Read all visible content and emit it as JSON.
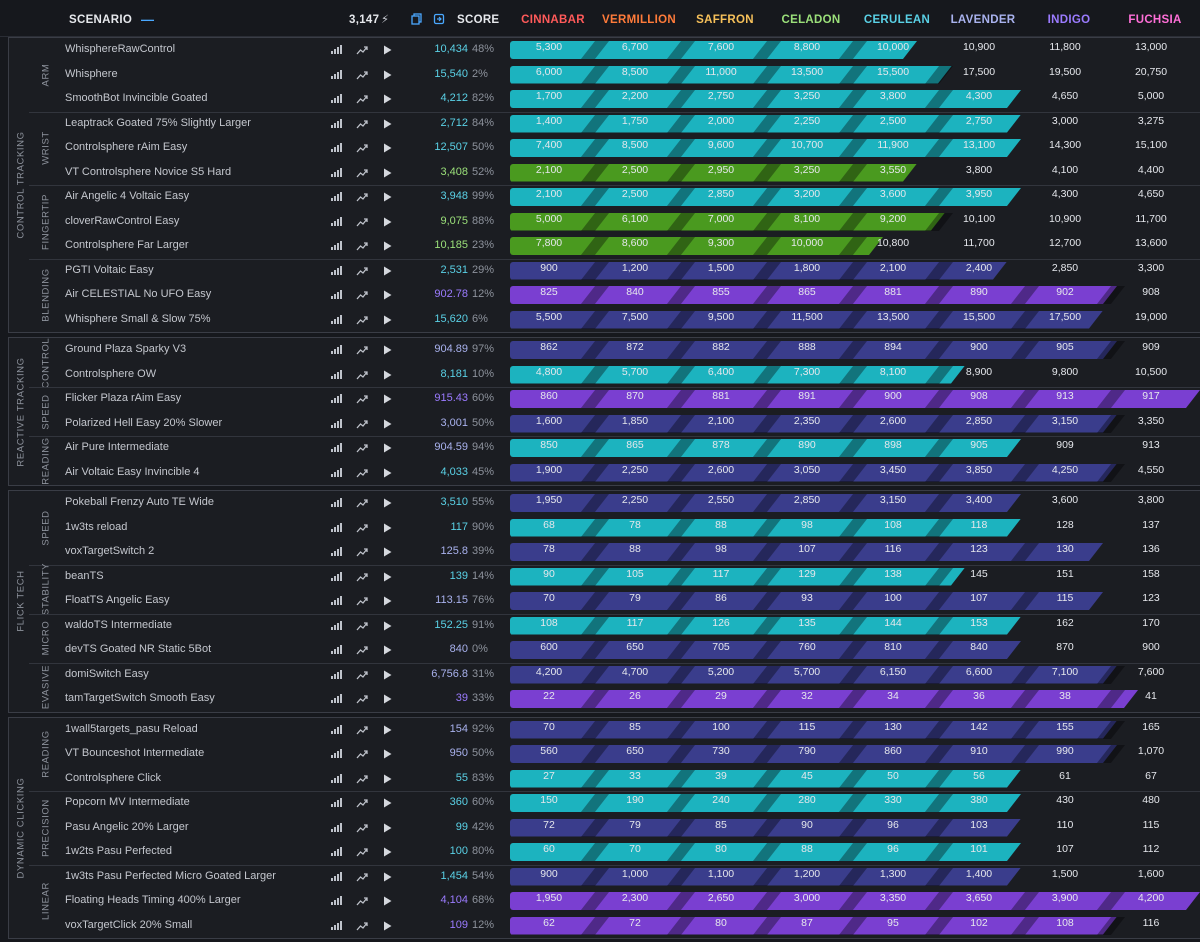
{
  "header": {
    "scenario_label": "SCENARIO",
    "collapse_symbol": "—",
    "total_points": "3,147",
    "bolt_icon": "⚡",
    "score_label": "SCORE",
    "ranks": [
      {
        "name": "CINNABAR",
        "color": "#ff5a5a"
      },
      {
        "name": "VERMILLION",
        "color": "#ff7b3a"
      },
      {
        "name": "SAFFRON",
        "color": "#f7c15a"
      },
      {
        "name": "CELADON",
        "color": "#9be07a"
      },
      {
        "name": "CERULEAN",
        "color": "#5ad1e6"
      },
      {
        "name": "LAVENDER",
        "color": "#a9b2ee"
      },
      {
        "name": "INDIGO",
        "color": "#9b7bff"
      },
      {
        "name": "FUCHSIA",
        "color": "#ff6fd8"
      }
    ]
  },
  "colors": {
    "teal": "#1cb3bf",
    "green": "#4a9a1f",
    "purple": "#7a3fd1",
    "navy": "#3a3d8c"
  },
  "categories": [
    {
      "label": "CONTROL TRACKING",
      "subs": [
        {
          "label": "ARM",
          "rows": [
            {
              "name": "WhisphereRawControl",
              "score": "10,434",
              "pct": "48%",
              "sc": "#5ad1e6",
              "fill": 0.59,
              "color": "teal",
              "values": [
                "5,300",
                "6,700",
                "7,600",
                "8,800",
                "10,000",
                "10,900",
                "11,800",
                "13,000"
              ]
            },
            {
              "name": "Whisphere",
              "score": "15,540",
              "pct": "2%",
              "sc": "#5ad1e6",
              "fill": 0.64,
              "color": "teal",
              "values": [
                "6,000",
                "8,500",
                "11,000",
                "13,500",
                "15,500",
                "17,500",
                "19,500",
                "20,750"
              ]
            },
            {
              "name": "SmoothBot Invincible Goated",
              "score": "4,212",
              "pct": "82%",
              "sc": "#5ad1e6",
              "fill": 0.74,
              "color": "teal",
              "values": [
                "1,700",
                "2,200",
                "2,750",
                "3,250",
                "3,800",
                "4,300",
                "4,650",
                "5,000"
              ]
            }
          ]
        },
        {
          "label": "WRIST",
          "rows": [
            {
              "name": "Leaptrack Goated 75% Slightly Larger",
              "score": "2,712",
              "pct": "84%",
              "sc": "#5ad1e6",
              "fill": 0.74,
              "color": "teal",
              "values": [
                "1,400",
                "1,750",
                "2,000",
                "2,250",
                "2,500",
                "2,750",
                "3,000",
                "3,275"
              ]
            },
            {
              "name": "Controlsphere rAim Easy",
              "score": "12,507",
              "pct": "50%",
              "sc": "#5ad1e6",
              "fill": 0.74,
              "color": "teal",
              "values": [
                "7,400",
                "8,500",
                "9,600",
                "10,700",
                "11,900",
                "13,100",
                "14,300",
                "15,100"
              ]
            },
            {
              "name": "VT Controlsphere Novice S5 Hard",
              "score": "3,408",
              "pct": "52%",
              "sc": "#9be07a",
              "fill": 0.59,
              "color": "green",
              "values": [
                "2,100",
                "2,500",
                "2,950",
                "3,250",
                "3,550",
                "3,800",
                "4,100",
                "4,400"
              ]
            }
          ]
        },
        {
          "label": "FINGERTIP",
          "rows": [
            {
              "name": "Air Angelic 4 Voltaic Easy",
              "score": "3,948",
              "pct": "99%",
              "sc": "#5ad1e6",
              "fill": 0.74,
              "color": "teal",
              "values": [
                "2,100",
                "2,500",
                "2,850",
                "3,200",
                "3,600",
                "3,950",
                "4,300",
                "4,650"
              ]
            },
            {
              "name": "cloverRawControl Easy",
              "score": "9,075",
              "pct": "88%",
              "sc": "#9be07a",
              "fill": 0.63,
              "color": "green",
              "values": [
                "5,000",
                "6,100",
                "7,000",
                "8,100",
                "9,200",
                "10,100",
                "10,900",
                "11,700"
              ]
            },
            {
              "name": "Controlsphere Far Larger",
              "score": "10,185",
              "pct": "23%",
              "sc": "#9be07a",
              "fill": 0.54,
              "color": "green",
              "values": [
                "7,800",
                "8,600",
                "9,300",
                "10,000",
                "10,800",
                "11,700",
                "12,700",
                "13,600"
              ]
            }
          ]
        },
        {
          "label": "BLENDING",
          "rows": [
            {
              "name": "PGTI Voltaic Easy",
              "score": "2,531",
              "pct": "29%",
              "sc": "#5ad1e6",
              "fill": 0.72,
              "color": "navy",
              "values": [
                "900",
                "1,200",
                "1,500",
                "1,800",
                "2,100",
                "2,400",
                "2,850",
                "3,300"
              ]
            },
            {
              "name": "Air CELESTIAL No UFO Easy",
              "score": "902.78",
              "pct": "12%",
              "sc": "#9b7bff",
              "fill": 0.88,
              "color": "purple",
              "values": [
                "825",
                "840",
                "855",
                "865",
                "881",
                "890",
                "902",
                "908"
              ]
            },
            {
              "name": "Whisphere Small & Slow 75%",
              "score": "15,620",
              "pct": "6%",
              "sc": "#5ad1e6",
              "fill": 0.86,
              "color": "navy",
              "values": [
                "5,500",
                "7,500",
                "9,500",
                "11,500",
                "13,500",
                "15,500",
                "17,500",
                "19,000"
              ]
            }
          ]
        }
      ]
    },
    {
      "label": "REACTIVE TRACKING",
      "subs": [
        {
          "label": "CONTROL",
          "rows": [
            {
              "name": "Ground Plaza Sparky V3",
              "score": "904.89",
              "pct": "97%",
              "sc": "#a9b2ee",
              "fill": 0.88,
              "color": "navy",
              "values": [
                "862",
                "872",
                "882",
                "888",
                "894",
                "900",
                "905",
                "909"
              ]
            },
            {
              "name": "Controlsphere OW",
              "score": "8,181",
              "pct": "10%",
              "sc": "#5ad1e6",
              "fill": 0.66,
              "color": "teal",
              "values": [
                "4,800",
                "5,700",
                "6,400",
                "7,300",
                "8,100",
                "8,900",
                "9,800",
                "10,500"
              ]
            }
          ]
        },
        {
          "label": "SPEED",
          "rows": [
            {
              "name": "Flicker Plaza rAim Easy",
              "score": "915.43",
              "pct": "60%",
              "sc": "#9b7bff",
              "fill": 1.0,
              "color": "purple",
              "values": [
                "860",
                "870",
                "881",
                "891",
                "900",
                "908",
                "913",
                "917"
              ]
            },
            {
              "name": "Polarized Hell Easy 20% Slower",
              "score": "3,001",
              "pct": "50%",
              "sc": "#a9b2ee",
              "fill": 0.88,
              "color": "navy",
              "values": [
                "1,600",
                "1,850",
                "2,100",
                "2,350",
                "2,600",
                "2,850",
                "3,150",
                "3,350"
              ]
            }
          ]
        },
        {
          "label": "READING",
          "rows": [
            {
              "name": "Air Pure Intermediate",
              "score": "904.59",
              "pct": "94%",
              "sc": "#a9b2ee",
              "fill": 0.74,
              "color": "teal",
              "values": [
                "850",
                "865",
                "878",
                "890",
                "898",
                "905",
                "909",
                "913"
              ]
            },
            {
              "name": "Air Voltaic Easy Invincible 4",
              "score": "4,033",
              "pct": "45%",
              "sc": "#5ad1e6",
              "fill": 0.88,
              "color": "navy",
              "values": [
                "1,900",
                "2,250",
                "2,600",
                "3,050",
                "3,450",
                "3,850",
                "4,250",
                "4,550"
              ]
            }
          ]
        }
      ]
    },
    {
      "label": "FLICK TECH",
      "subs": [
        {
          "label": "SPEED",
          "rows": [
            {
              "name": "Pokeball Frenzy Auto TE Wide",
              "score": "3,510",
              "pct": "55%",
              "sc": "#5ad1e6",
              "fill": 0.74,
              "color": "navy",
              "values": [
                "1,950",
                "2,250",
                "2,550",
                "2,850",
                "3,150",
                "3,400",
                "3,600",
                "3,800"
              ]
            },
            {
              "name": "1w3ts reload",
              "score": "117",
              "pct": "90%",
              "sc": "#5ad1e6",
              "fill": 0.74,
              "color": "teal",
              "values": [
                "68",
                "78",
                "88",
                "98",
                "108",
                "118",
                "128",
                "137"
              ]
            },
            {
              "name": "voxTargetSwitch 2",
              "score": "125.8",
              "pct": "39%",
              "sc": "#a9b2ee",
              "fill": 0.86,
              "color": "navy",
              "values": [
                "78",
                "88",
                "98",
                "107",
                "116",
                "123",
                "130",
                "136"
              ]
            }
          ]
        },
        {
          "label": "STABILITY",
          "rows": [
            {
              "name": "beanTS",
              "score": "139",
              "pct": "14%",
              "sc": "#5ad1e6",
              "fill": 0.66,
              "color": "teal",
              "values": [
                "90",
                "105",
                "117",
                "129",
                "138",
                "145",
                "151",
                "158"
              ]
            },
            {
              "name": "FloatTS Angelic Easy",
              "score": "113.15",
              "pct": "76%",
              "sc": "#a9b2ee",
              "fill": 0.86,
              "color": "navy",
              "values": [
                "70",
                "79",
                "86",
                "93",
                "100",
                "107",
                "115",
                "123"
              ]
            }
          ]
        },
        {
          "label": "MICRO",
          "rows": [
            {
              "name": "waldoTS Intermediate",
              "score": "152.25",
              "pct": "91%",
              "sc": "#5ad1e6",
              "fill": 0.74,
              "color": "teal",
              "values": [
                "108",
                "117",
                "126",
                "135",
                "144",
                "153",
                "162",
                "170"
              ]
            },
            {
              "name": "devTS Goated NR Static 5Bot",
              "score": "840",
              "pct": "0%",
              "sc": "#a9b2ee",
              "fill": 0.74,
              "color": "navy",
              "values": [
                "600",
                "650",
                "705",
                "760",
                "810",
                "840",
                "870",
                "900"
              ]
            }
          ]
        },
        {
          "label": "EVASIVE",
          "rows": [
            {
              "name": "domiSwitch Easy",
              "score": "6,756.8",
              "pct": "31%",
              "sc": "#a9b2ee",
              "fill": 0.88,
              "color": "navy",
              "values": [
                "4,200",
                "4,700",
                "5,200",
                "5,700",
                "6,150",
                "6,600",
                "7,100",
                "7,600"
              ]
            },
            {
              "name": "tamTargetSwitch Smooth Easy",
              "score": "39",
              "pct": "33%",
              "sc": "#9b7bff",
              "fill": 0.91,
              "color": "purple",
              "values": [
                "22",
                "26",
                "29",
                "32",
                "34",
                "36",
                "38",
                "41"
              ]
            }
          ]
        }
      ]
    },
    {
      "label": "DYNAMIC CLICKING",
      "subs": [
        {
          "label": "READING",
          "rows": [
            {
              "name": "1wall5targets_pasu Reload",
              "score": "154",
              "pct": "92%",
              "sc": "#a9b2ee",
              "fill": 0.88,
              "color": "navy",
              "values": [
                "70",
                "85",
                "100",
                "115",
                "130",
                "142",
                "155",
                "165"
              ]
            },
            {
              "name": "VT Bounceshot Intermediate",
              "score": "950",
              "pct": "50%",
              "sc": "#a9b2ee",
              "fill": 0.88,
              "color": "navy",
              "values": [
                "560",
                "650",
                "730",
                "790",
                "860",
                "910",
                "990",
                "1,070"
              ]
            },
            {
              "name": "Controlsphere Click",
              "score": "55",
              "pct": "83%",
              "sc": "#5ad1e6",
              "fill": 0.74,
              "color": "teal",
              "values": [
                "27",
                "33",
                "39",
                "45",
                "50",
                "56",
                "61",
                "67"
              ]
            }
          ]
        },
        {
          "label": "PRECISION",
          "rows": [
            {
              "name": "Popcorn MV Intermediate",
              "score": "360",
              "pct": "60%",
              "sc": "#5ad1e6",
              "fill": 0.74,
              "color": "teal",
              "values": [
                "150",
                "190",
                "240",
                "280",
                "330",
                "380",
                "430",
                "480"
              ]
            },
            {
              "name": "Pasu Angelic 20% Larger",
              "score": "99",
              "pct": "42%",
              "sc": "#5ad1e6",
              "fill": 0.74,
              "color": "navy",
              "values": [
                "72",
                "79",
                "85",
                "90",
                "96",
                "103",
                "110",
                "115"
              ]
            },
            {
              "name": "1w2ts Pasu Perfected",
              "score": "100",
              "pct": "80%",
              "sc": "#5ad1e6",
              "fill": 0.74,
              "color": "teal",
              "values": [
                "60",
                "70",
                "80",
                "88",
                "96",
                "101",
                "107",
                "112"
              ]
            }
          ]
        },
        {
          "label": "LINEAR",
          "rows": [
            {
              "name": "1w3ts Pasu Perfected Micro Goated Larger",
              "score": "1,454",
              "pct": "54%",
              "sc": "#5ad1e6",
              "fill": 0.74,
              "color": "navy",
              "values": [
                "900",
                "1,000",
                "1,100",
                "1,200",
                "1,300",
                "1,400",
                "1,500",
                "1,600"
              ]
            },
            {
              "name": "Floating Heads Timing 400% Larger",
              "score": "4,104",
              "pct": "68%",
              "sc": "#9b7bff",
              "fill": 1.0,
              "color": "purple",
              "values": [
                "1,950",
                "2,300",
                "2,650",
                "3,000",
                "3,350",
                "3,650",
                "3,900",
                "4,200"
              ]
            },
            {
              "name": "voxTargetClick 20% Small",
              "score": "109",
              "pct": "12%",
              "sc": "#9b7bff",
              "fill": 0.88,
              "color": "purple",
              "values": [
                "62",
                "72",
                "80",
                "87",
                "95",
                "102",
                "108",
                "116"
              ]
            }
          ]
        }
      ]
    }
  ]
}
